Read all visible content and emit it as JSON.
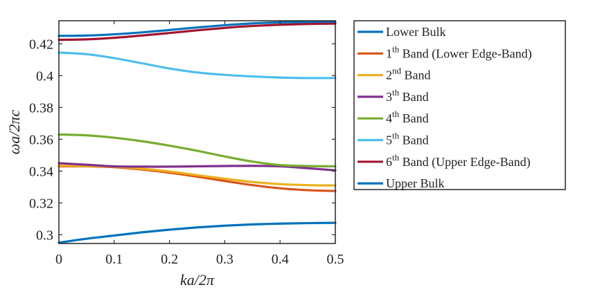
{
  "chart_data": {
    "type": "line",
    "xlabel": "ka/2π",
    "ylabel": "ωa/2πc",
    "xlim": [
      0,
      0.5
    ],
    "ylim": [
      0.2945,
      0.4345
    ],
    "xticks": [
      0,
      0.1,
      0.2,
      0.3,
      0.4,
      0.5
    ],
    "xtick_labels": [
      "0",
      "0.1",
      "0.2",
      "0.3",
      "0.4",
      "0.5"
    ],
    "yticks": [
      0.3,
      0.32,
      0.34,
      0.36,
      0.38,
      0.4,
      0.42
    ],
    "ytick_labels": [
      "0.3",
      "0.32",
      "0.34",
      "0.36",
      "0.38",
      "0.4",
      "0.42"
    ],
    "grid": false,
    "legend_position": "outside-right",
    "x": [
      0,
      0.05,
      0.1,
      0.15,
      0.2,
      0.25,
      0.3,
      0.35,
      0.4,
      0.45,
      0.5
    ],
    "series": [
      {
        "name": "Lower Bulk",
        "label_main": "Lower Bulk",
        "label_sup": "",
        "label_tail": "",
        "color": "#0072BD",
        "values": [
          0.295,
          0.2975,
          0.2995,
          0.3015,
          0.3032,
          0.3046,
          0.3057,
          0.3065,
          0.307,
          0.3073,
          0.3075
        ]
      },
      {
        "name": "1th Band (Lower Edge-Band)",
        "label_main": "1",
        "label_sup": "th",
        "label_tail": " Band (Lower Edge-Band)",
        "color": "#D95319",
        "values": [
          0.343,
          0.343,
          0.3425,
          0.341,
          0.339,
          0.3365,
          0.3338,
          0.3312,
          0.3292,
          0.328,
          0.3275
        ]
      },
      {
        "name": "2nd Band",
        "label_main": "2",
        "label_sup": "nd",
        "label_tail": " Band",
        "color": "#EDB120",
        "values": [
          0.3435,
          0.3432,
          0.3428,
          0.3415,
          0.3398,
          0.3375,
          0.3352,
          0.3332,
          0.3318,
          0.3312,
          0.331
        ]
      },
      {
        "name": "3th Band",
        "label_main": "3",
        "label_sup": "th",
        "label_tail": " Band",
        "color": "#7E2F8E",
        "values": [
          0.345,
          0.344,
          0.343,
          0.3428,
          0.3428,
          0.343,
          0.3432,
          0.3433,
          0.343,
          0.3418,
          0.3405
        ]
      },
      {
        "name": "4th Band",
        "label_main": "4",
        "label_sup": "th",
        "label_tail": " Band",
        "color": "#77AC30",
        "values": [
          0.363,
          0.3625,
          0.361,
          0.3588,
          0.356,
          0.3528,
          0.3492,
          0.346,
          0.3438,
          0.3432,
          0.343
        ]
      },
      {
        "name": "5th Band",
        "label_main": "5",
        "label_sup": "th",
        "label_tail": " Band",
        "color": "#4DBEEE",
        "values": [
          0.4145,
          0.4135,
          0.411,
          0.4078,
          0.4045,
          0.402,
          0.4005,
          0.3995,
          0.3988,
          0.3985,
          0.3985
        ]
      },
      {
        "name": "6th Band (Upper Edge-Band)",
        "label_main": "6",
        "label_sup": "th",
        "label_tail": " Band (Upper Edge-Band)",
        "color": "#A2142F",
        "values": [
          0.4225,
          0.4228,
          0.4238,
          0.4252,
          0.4268,
          0.4285,
          0.43,
          0.4312,
          0.432,
          0.4325,
          0.4327
        ]
      },
      {
        "name": "Upper Bulk",
        "label_main": "Upper Bulk",
        "label_sup": "",
        "label_tail": "",
        "color": "#0072BD",
        "values": [
          0.425,
          0.4252,
          0.426,
          0.4272,
          0.4287,
          0.4303,
          0.4317,
          0.4328,
          0.4335,
          0.4338,
          0.434
        ]
      }
    ]
  }
}
